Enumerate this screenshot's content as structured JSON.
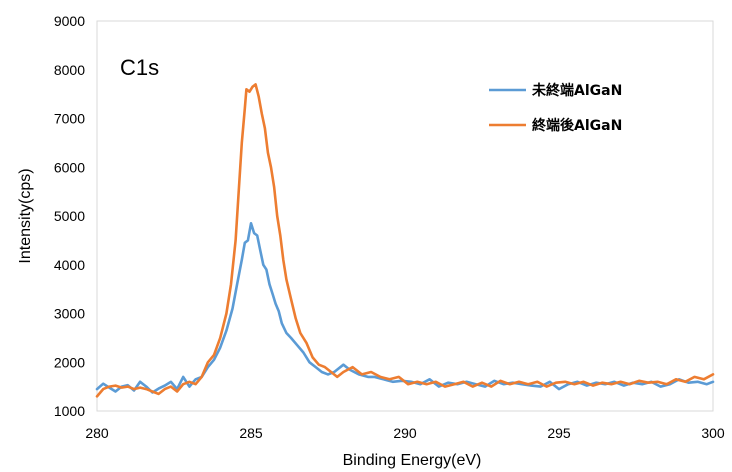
{
  "chart_data": {
    "type": "line",
    "title": "",
    "annotation": "C1s",
    "xlabel": "Binding Energy(eV)",
    "ylabel": "Intensity(cps)",
    "xlim": [
      280,
      300
    ],
    "ylim": [
      1000,
      9000
    ],
    "xticks": [
      "280",
      "285",
      "290",
      "295",
      "300"
    ],
    "yticks": [
      "1000",
      "2000",
      "3000",
      "4000",
      "5000",
      "6000",
      "7000",
      "8000",
      "9000"
    ],
    "grid": false,
    "legend_position": "top-right",
    "series": [
      {
        "name": "未終端AlGaN",
        "color": "#5B9BD5",
        "points": [
          [
            280.0,
            1450
          ],
          [
            280.2,
            1560
          ],
          [
            280.4,
            1480
          ],
          [
            280.6,
            1400
          ],
          [
            280.8,
            1500
          ],
          [
            281.0,
            1530
          ],
          [
            281.2,
            1420
          ],
          [
            281.4,
            1600
          ],
          [
            281.6,
            1500
          ],
          [
            281.8,
            1380
          ],
          [
            282.0,
            1460
          ],
          [
            282.2,
            1520
          ],
          [
            282.4,
            1600
          ],
          [
            282.6,
            1450
          ],
          [
            282.8,
            1700
          ],
          [
            283.0,
            1500
          ],
          [
            283.2,
            1650
          ],
          [
            283.4,
            1700
          ],
          [
            283.6,
            1900
          ],
          [
            283.8,
            2050
          ],
          [
            284.0,
            2300
          ],
          [
            284.2,
            2650
          ],
          [
            284.4,
            3100
          ],
          [
            284.55,
            3600
          ],
          [
            284.7,
            4100
          ],
          [
            284.8,
            4450
          ],
          [
            284.9,
            4500
          ],
          [
            285.0,
            4850
          ],
          [
            285.1,
            4650
          ],
          [
            285.2,
            4600
          ],
          [
            285.3,
            4300
          ],
          [
            285.4,
            4000
          ],
          [
            285.5,
            3900
          ],
          [
            285.6,
            3600
          ],
          [
            285.7,
            3400
          ],
          [
            285.8,
            3200
          ],
          [
            285.9,
            3050
          ],
          [
            286.0,
            2800
          ],
          [
            286.15,
            2600
          ],
          [
            286.3,
            2500
          ],
          [
            286.5,
            2350
          ],
          [
            286.7,
            2200
          ],
          [
            286.9,
            2000
          ],
          [
            287.1,
            1900
          ],
          [
            287.3,
            1800
          ],
          [
            287.5,
            1750
          ],
          [
            287.7,
            1800
          ],
          [
            288.0,
            1950
          ],
          [
            288.2,
            1850
          ],
          [
            288.5,
            1750
          ],
          [
            288.8,
            1700
          ],
          [
            289.0,
            1700
          ],
          [
            289.3,
            1650
          ],
          [
            289.6,
            1600
          ],
          [
            289.9,
            1620
          ],
          [
            290.2,
            1600
          ],
          [
            290.5,
            1550
          ],
          [
            290.8,
            1650
          ],
          [
            291.1,
            1500
          ],
          [
            291.4,
            1580
          ],
          [
            291.7,
            1550
          ],
          [
            292.0,
            1600
          ],
          [
            292.3,
            1550
          ],
          [
            292.6,
            1500
          ],
          [
            292.9,
            1620
          ],
          [
            293.2,
            1550
          ],
          [
            293.5,
            1580
          ],
          [
            293.8,
            1550
          ],
          [
            294.1,
            1520
          ],
          [
            294.4,
            1500
          ],
          [
            294.7,
            1600
          ],
          [
            295.0,
            1450
          ],
          [
            295.3,
            1550
          ],
          [
            295.6,
            1600
          ],
          [
            295.9,
            1520
          ],
          [
            296.2,
            1580
          ],
          [
            296.5,
            1550
          ],
          [
            296.8,
            1600
          ],
          [
            297.1,
            1520
          ],
          [
            297.4,
            1580
          ],
          [
            297.7,
            1550
          ],
          [
            298.0,
            1600
          ],
          [
            298.3,
            1500
          ],
          [
            298.6,
            1550
          ],
          [
            298.9,
            1650
          ],
          [
            299.2,
            1580
          ],
          [
            299.5,
            1600
          ],
          [
            299.8,
            1550
          ],
          [
            300.0,
            1600
          ]
        ]
      },
      {
        "name": "終端後AlGaN",
        "color": "#ED7D31",
        "points": [
          [
            280.0,
            1300
          ],
          [
            280.2,
            1450
          ],
          [
            280.4,
            1500
          ],
          [
            280.6,
            1520
          ],
          [
            280.8,
            1480
          ],
          [
            281.0,
            1500
          ],
          [
            281.2,
            1450
          ],
          [
            281.4,
            1480
          ],
          [
            281.6,
            1450
          ],
          [
            281.8,
            1400
          ],
          [
            282.0,
            1350
          ],
          [
            282.2,
            1450
          ],
          [
            282.4,
            1500
          ],
          [
            282.6,
            1400
          ],
          [
            282.8,
            1550
          ],
          [
            283.0,
            1600
          ],
          [
            283.2,
            1550
          ],
          [
            283.4,
            1700
          ],
          [
            283.6,
            2000
          ],
          [
            283.8,
            2150
          ],
          [
            284.0,
            2500
          ],
          [
            284.2,
            3000
          ],
          [
            284.35,
            3600
          ],
          [
            284.5,
            4500
          ],
          [
            284.6,
            5500
          ],
          [
            284.7,
            6500
          ],
          [
            284.8,
            7200
          ],
          [
            284.85,
            7600
          ],
          [
            284.95,
            7550
          ],
          [
            285.05,
            7650
          ],
          [
            285.15,
            7700
          ],
          [
            285.25,
            7450
          ],
          [
            285.35,
            7100
          ],
          [
            285.45,
            6800
          ],
          [
            285.55,
            6300
          ],
          [
            285.65,
            6000
          ],
          [
            285.75,
            5600
          ],
          [
            285.85,
            5000
          ],
          [
            285.95,
            4600
          ],
          [
            286.05,
            4100
          ],
          [
            286.15,
            3700
          ],
          [
            286.3,
            3300
          ],
          [
            286.45,
            2900
          ],
          [
            286.6,
            2600
          ],
          [
            286.8,
            2400
          ],
          [
            287.0,
            2100
          ],
          [
            287.2,
            1950
          ],
          [
            287.4,
            1900
          ],
          [
            287.6,
            1800
          ],
          [
            287.8,
            1700
          ],
          [
            288.0,
            1800
          ],
          [
            288.3,
            1900
          ],
          [
            288.6,
            1750
          ],
          [
            288.9,
            1800
          ],
          [
            289.2,
            1700
          ],
          [
            289.5,
            1650
          ],
          [
            289.8,
            1700
          ],
          [
            290.1,
            1550
          ],
          [
            290.4,
            1600
          ],
          [
            290.7,
            1550
          ],
          [
            291.0,
            1600
          ],
          [
            291.3,
            1500
          ],
          [
            291.6,
            1550
          ],
          [
            291.9,
            1600
          ],
          [
            292.2,
            1500
          ],
          [
            292.5,
            1580
          ],
          [
            292.8,
            1500
          ],
          [
            293.1,
            1620
          ],
          [
            293.4,
            1550
          ],
          [
            293.7,
            1600
          ],
          [
            294.0,
            1550
          ],
          [
            294.3,
            1600
          ],
          [
            294.6,
            1500
          ],
          [
            294.9,
            1580
          ],
          [
            295.2,
            1600
          ],
          [
            295.5,
            1550
          ],
          [
            295.8,
            1600
          ],
          [
            296.1,
            1520
          ],
          [
            296.4,
            1580
          ],
          [
            296.7,
            1550
          ],
          [
            297.0,
            1600
          ],
          [
            297.3,
            1550
          ],
          [
            297.6,
            1620
          ],
          [
            297.9,
            1580
          ],
          [
            298.2,
            1600
          ],
          [
            298.5,
            1550
          ],
          [
            298.8,
            1650
          ],
          [
            299.1,
            1600
          ],
          [
            299.4,
            1700
          ],
          [
            299.7,
            1650
          ],
          [
            300.0,
            1750
          ]
        ]
      }
    ]
  }
}
